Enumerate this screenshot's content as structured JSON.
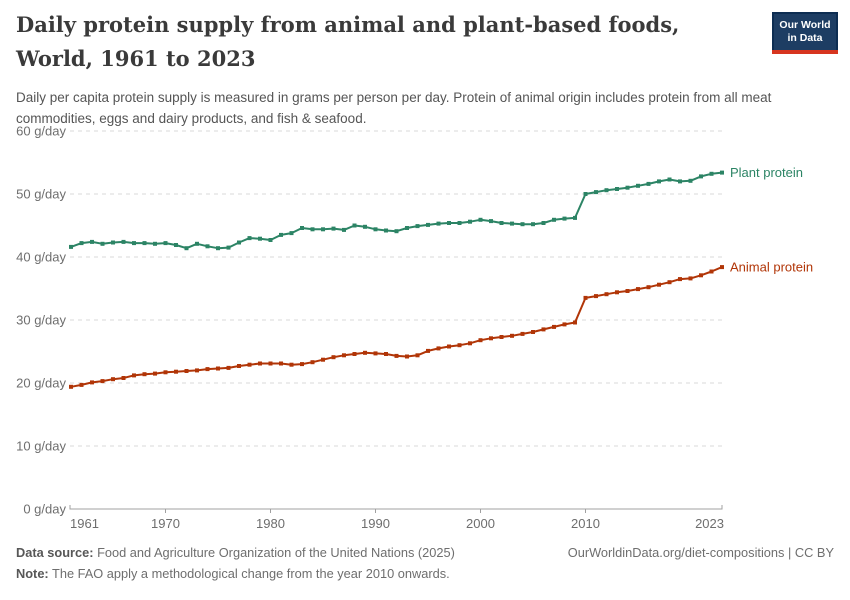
{
  "chart_data": {
    "type": "line",
    "title": "Daily protein supply from animal and plant-based foods, World, 1961 to 2023",
    "subtitle": "Daily per capita protein supply is measured in grams per person per day. Protein of animal origin includes protein from all meat commodities, eggs and dairy products, and fish & seafood.",
    "unit": "g/day",
    "xlim": [
      1961,
      2023
    ],
    "ylim": [
      0,
      60
    ],
    "grid": "horizontal-dashed",
    "legend_position": "end-of-line-labels",
    "x_ticks": [
      1961,
      1970,
      1980,
      1990,
      2000,
      2010,
      2023
    ],
    "x_tick_labels": [
      "1961",
      "1970",
      "1980",
      "1990",
      "2000",
      "2010",
      "2023"
    ],
    "y_ticks": [
      0,
      10,
      20,
      30,
      40,
      50,
      60
    ],
    "y_tick_labels": [
      "0 g/day",
      "10 g/day",
      "20 g/day",
      "30 g/day",
      "40 g/day",
      "50 g/day",
      "60 g/day"
    ],
    "x": [
      1961,
      1962,
      1963,
      1964,
      1965,
      1966,
      1967,
      1968,
      1969,
      1970,
      1971,
      1972,
      1973,
      1974,
      1975,
      1976,
      1977,
      1978,
      1979,
      1980,
      1981,
      1982,
      1983,
      1984,
      1985,
      1986,
      1987,
      1988,
      1989,
      1990,
      1991,
      1992,
      1993,
      1994,
      1995,
      1996,
      1997,
      1998,
      1999,
      2000,
      2001,
      2002,
      2003,
      2004,
      2005,
      2006,
      2007,
      2008,
      2009,
      2010,
      2011,
      2012,
      2013,
      2014,
      2015,
      2016,
      2017,
      2018,
      2019,
      2020,
      2021,
      2022,
      2023
    ],
    "series": [
      {
        "name": "Plant protein",
        "color": "#2c8465",
        "values": [
          41.6,
          42.2,
          42.4,
          42.1,
          42.3,
          42.4,
          42.2,
          42.2,
          42.1,
          42.2,
          41.9,
          41.4,
          42.1,
          41.7,
          41.4,
          41.5,
          42.3,
          43.0,
          42.9,
          42.7,
          43.5,
          43.8,
          44.6,
          44.4,
          44.4,
          44.5,
          44.3,
          45.0,
          44.8,
          44.4,
          44.2,
          44.1,
          44.6,
          44.9,
          45.1,
          45.3,
          45.4,
          45.4,
          45.6,
          45.9,
          45.7,
          45.4,
          45.3,
          45.2,
          45.2,
          45.4,
          45.9,
          46.1,
          46.2,
          50.0,
          50.3,
          50.6,
          50.8,
          51.0,
          51.3,
          51.6,
          52.0,
          52.3,
          52.0,
          52.1,
          52.8,
          53.2,
          53.4
        ]
      },
      {
        "name": "Animal protein",
        "color": "#b13507",
        "values": [
          19.4,
          19.7,
          20.1,
          20.3,
          20.6,
          20.8,
          21.2,
          21.4,
          21.5,
          21.7,
          21.8,
          21.9,
          22.0,
          22.2,
          22.3,
          22.4,
          22.7,
          22.9,
          23.1,
          23.1,
          23.1,
          22.9,
          23.0,
          23.3,
          23.7,
          24.1,
          24.4,
          24.6,
          24.8,
          24.7,
          24.6,
          24.3,
          24.2,
          24.4,
          25.1,
          25.5,
          25.8,
          26.0,
          26.3,
          26.8,
          27.1,
          27.3,
          27.5,
          27.8,
          28.1,
          28.5,
          28.9,
          29.3,
          29.6,
          33.5,
          33.8,
          34.1,
          34.4,
          34.6,
          34.9,
          35.2,
          35.6,
          36.0,
          36.5,
          36.6,
          37.1,
          37.7,
          38.4
        ]
      }
    ],
    "colors": {
      "plant": "#2c8465",
      "animal": "#b13507",
      "gridline": "#dadada",
      "axis": "#a0a0a0",
      "tick_text": "#6e6e6e"
    }
  },
  "header": {
    "logo_line1": "Our World",
    "logo_line2": "in Data",
    "logo_bg": "#1d3d63",
    "logo_accent": "#d7351f"
  },
  "footer": {
    "datasource_label": "Data source:",
    "datasource_value": " Food and Agriculture Organization of the United Nations (2025)",
    "note_label": "Note:",
    "note_value": " The FAO apply a methodological change from the year 2010 onwards.",
    "credit": "OurWorldinData.org/diet-compositions | CC BY"
  }
}
